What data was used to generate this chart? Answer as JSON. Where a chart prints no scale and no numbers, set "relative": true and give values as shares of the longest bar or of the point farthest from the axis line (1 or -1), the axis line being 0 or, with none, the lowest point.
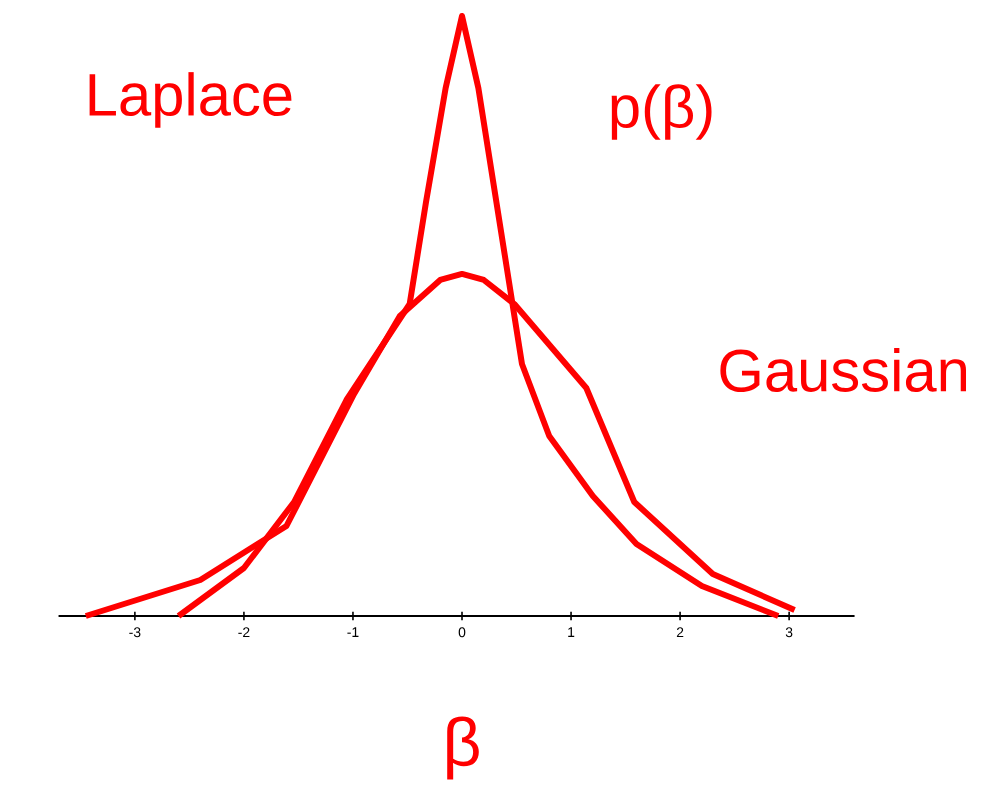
{
  "chart_data": {
    "type": "line",
    "relative": true,
    "xlabel": "β",
    "ylabel": "p(β)",
    "xlim": [
      -3.7,
      3.6
    ],
    "xticks": [
      -3,
      -2,
      -1,
      0,
      1,
      2,
      3
    ],
    "series": [
      {
        "name": "Laplace",
        "color": "#ff0000",
        "x": [
          -2.6,
          -2.0,
          -1.54,
          -1.06,
          -0.48,
          -0.33,
          -0.15,
          0,
          0.15,
          0.35,
          0.55,
          0.8,
          1.2,
          1.6,
          2.2,
          2.9
        ],
        "values": [
          0,
          0.08,
          0.19,
          0.36,
          0.52,
          0.69,
          0.88,
          1,
          0.88,
          0.65,
          0.42,
          0.3,
          0.2,
          0.12,
          0.05,
          0
        ]
      },
      {
        "name": "Gaussian",
        "color": "#ff0000",
        "x": [
          -3.45,
          -2.4,
          -1.61,
          -0.99,
          -0.57,
          -0.2,
          0,
          0.2,
          0.48,
          1.14,
          1.58,
          2.3,
          3.05
        ],
        "values": [
          0,
          0.06,
          0.15,
          0.37,
          0.5,
          0.56,
          0.57,
          0.56,
          0.52,
          0.38,
          0.19,
          0.07,
          0.01
        ]
      }
    ]
  }
}
